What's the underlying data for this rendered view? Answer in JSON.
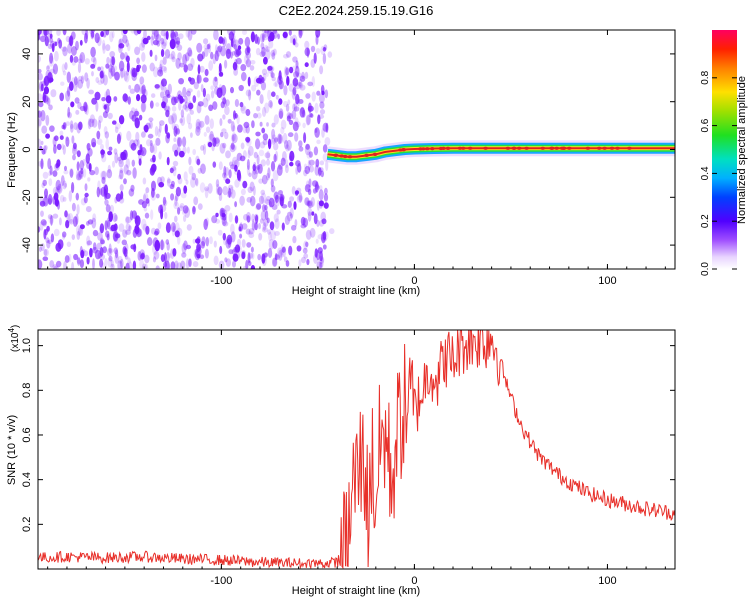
{
  "title": "C2E2.2024.259.15.19.G16",
  "colors": {
    "snr_line": "#e8302a",
    "scatter_base": "#7a1bff",
    "ridge_core": "#e02020",
    "ridge_inner": "#ffe020",
    "ridge_mid": "#20e040",
    "ridge_outer": "#00a0ff",
    "frame": "#000000"
  },
  "chart_data": [
    {
      "type": "heatmap",
      "title": "C2E2.2024.259.15.19.G16",
      "xlabel": "Height of straight line (km)",
      "ylabel": "Frequency (Hz)",
      "xlim": [
        -195,
        135
      ],
      "ylim": [
        -50,
        50
      ],
      "x_ticks": [
        -100,
        0,
        100
      ],
      "x_tick_labels": [
        "-100",
        "0",
        "100"
      ],
      "y_ticks": [
        -40,
        -20,
        0,
        20,
        40
      ],
      "y_tick_labels": [
        "-40",
        "-20",
        "0",
        "20",
        "40"
      ],
      "noise_region_x": [
        -195,
        -45
      ],
      "ridge": {
        "x": [
          -45,
          -40,
          -35,
          -30,
          -25,
          -20,
          -15,
          -10,
          -5,
          0,
          10,
          20,
          40,
          60,
          80,
          100,
          120,
          135
        ],
        "frequency": [
          -2,
          -2.5,
          -3,
          -3,
          -2.5,
          -2,
          -1,
          -0.5,
          0,
          0.2,
          0.4,
          0.5,
          0.5,
          0.5,
          0.5,
          0.5,
          0.5,
          0.5
        ]
      },
      "colorbar": {
        "label": "Normalized spectral amplitude",
        "range": [
          0,
          1
        ],
        "ticks": [
          0.0,
          0.2,
          0.4,
          0.6,
          0.8
        ],
        "tick_labels": [
          "0.0",
          "0.2",
          "0.4",
          "0.6",
          "0.8"
        ]
      }
    },
    {
      "type": "line",
      "xlabel": "Height of straight line (km)",
      "ylabel": "SNR (10 * v/v)",
      "scale_label": "(x10",
      "scale_exponent": "4",
      "scale_close": ")",
      "xlim": [
        -195,
        135
      ],
      "ylim": [
        0,
        10.7
      ],
      "x_ticks": [
        -100,
        0,
        100
      ],
      "x_tick_labels": [
        "-100",
        "0",
        "100"
      ],
      "y_ticks": [
        2,
        4,
        6,
        8,
        10
      ],
      "y_tick_labels": [
        "0.2",
        "0.4",
        "0.6",
        "0.8",
        "1.0"
      ],
      "series": [
        {
          "x": [
            -195,
            -180,
            -160,
            -140,
            -120,
            -100,
            -80,
            -60,
            -45,
            -40,
            -35,
            -32,
            -29,
            -26,
            -24,
            -22,
            -20,
            -18,
            -15,
            -12,
            -8,
            -4,
            0,
            4,
            8,
            12,
            16,
            20,
            24,
            28,
            32,
            36,
            40,
            44,
            48,
            52,
            56,
            60,
            65,
            70,
            75,
            80,
            90,
            100,
            110,
            120,
            135
          ],
          "values": [
            0.5,
            0.55,
            0.5,
            0.55,
            0.45,
            0.4,
            0.3,
            0.25,
            0.25,
            0.3,
            0.8,
            3.5,
            4.5,
            5.0,
            2.5,
            5.0,
            3.0,
            5.5,
            6.0,
            4.0,
            6.5,
            7.5,
            7.0,
            8.0,
            9.0,
            8.5,
            9.5,
            9.3,
            10.0,
            10.2,
            10.3,
            10.2,
            10.4,
            9.5,
            8.2,
            7.2,
            6.3,
            5.7,
            5.0,
            4.6,
            4.2,
            3.9,
            3.4,
            3.1,
            2.9,
            2.7,
            2.5
          ]
        }
      ]
    }
  ]
}
